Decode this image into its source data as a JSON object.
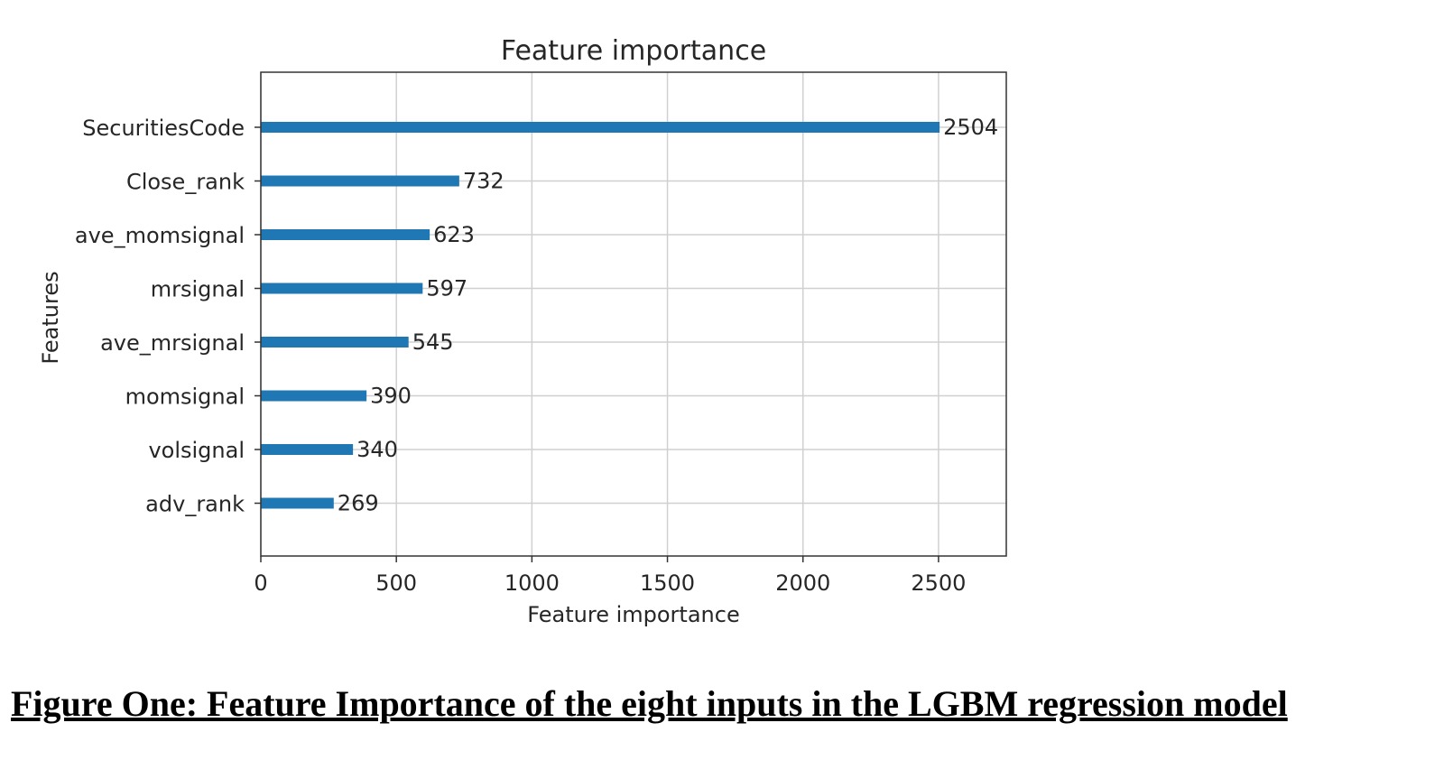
{
  "chart_data": {
    "type": "bar",
    "orientation": "horizontal",
    "title": "Feature importance",
    "xlabel": "Feature importance",
    "ylabel": "Features",
    "categories": [
      "SecuritiesCode",
      "Close_rank",
      "ave_momsignal",
      "mrsignal",
      "ave_mrsignal",
      "momsignal",
      "volsignal",
      "adv_rank"
    ],
    "values": [
      2504,
      732,
      623,
      597,
      545,
      390,
      340,
      269
    ],
    "xlim": [
      0,
      2750
    ],
    "xticks": [
      0,
      500,
      1000,
      1500,
      2000,
      2500
    ],
    "grid": true,
    "bar_color": "#1f77b4",
    "data_labels": true
  },
  "caption": "Figure One: Feature Importance of the eight inputs in the LGBM regression model"
}
